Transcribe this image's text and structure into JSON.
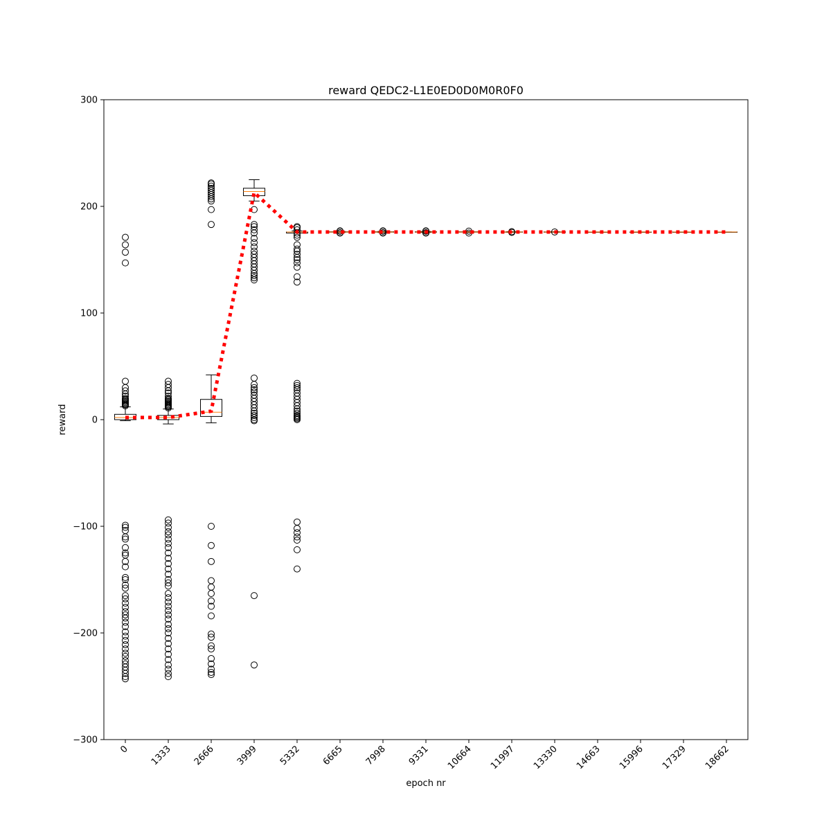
{
  "chart_data": {
    "type": "box",
    "title": "reward QEDC2-L1E0ED0D0M0R0F0",
    "xlabel": "epoch nr",
    "ylabel": "reward",
    "ylim": [
      -300,
      300
    ],
    "yticks": [
      -300,
      -200,
      -100,
      0,
      100,
      200,
      300
    ],
    "ytick_labels": [
      "−300",
      "−200",
      "−100",
      "0",
      "100",
      "200",
      "300"
    ],
    "categories": [
      "0",
      "1333",
      "2666",
      "3999",
      "5332",
      "6665",
      "7998",
      "9331",
      "10664",
      "11997",
      "13330",
      "14663",
      "15996",
      "17329",
      "18662"
    ],
    "grid": false,
    "legend": "none",
    "colors": {
      "box_edge": "#000000",
      "median": "#ff7f0e",
      "mean_line": "#ff0000",
      "flier": "#000000"
    },
    "boxes": [
      {
        "category": "0",
        "whisker_low": -1,
        "q1": 0,
        "median": 2,
        "q3": 5,
        "whisker_high": 12,
        "fliers": [
          13,
          14,
          15,
          16,
          17,
          18,
          19,
          20,
          22,
          24,
          27,
          30,
          36,
          147,
          157,
          164,
          171,
          -99,
          -101,
          -104,
          -110,
          -112,
          -120,
          -125,
          -127,
          -133,
          -138,
          -148,
          -150,
          -155,
          -158,
          -165,
          -168,
          -172,
          -176,
          -180,
          -183,
          -186,
          -190,
          -194,
          -199,
          -203,
          -207,
          -211,
          -215,
          -219,
          -222,
          -226,
          -229,
          -232,
          -235,
          -238,
          -241,
          -243
        ]
      },
      {
        "category": "1333",
        "whisker_low": -4,
        "q1": 0,
        "median": 2,
        "q3": 4,
        "whisker_high": 10,
        "fliers": [
          11,
          12,
          13,
          14,
          15,
          16,
          17,
          18,
          19,
          20,
          22,
          25,
          27,
          30,
          33,
          36,
          -94,
          -97,
          -101,
          -105,
          -108,
          -112,
          -116,
          -120,
          -125,
          -130,
          -135,
          -140,
          -145,
          -150,
          -153,
          -156,
          -163,
          -167,
          -171,
          -175,
          -179,
          -183,
          -187,
          -192,
          -196,
          -200,
          -205,
          -210,
          -215,
          -220,
          -225,
          -230,
          -234,
          -238,
          -241
        ]
      },
      {
        "category": "2666",
        "whisker_low": -3,
        "q1": 3,
        "median": 7,
        "q3": 19,
        "whisker_high": 42,
        "fliers": [
          183,
          197,
          205,
          207,
          209,
          211,
          213,
          215,
          217,
          219,
          221,
          222,
          -100,
          -118,
          -133,
          -151,
          -157,
          -163,
          -170,
          -175,
          -184,
          -201,
          -204,
          -212,
          -215,
          -224,
          -229,
          -234,
          -237,
          -239
        ]
      },
      {
        "category": "3999",
        "whisker_low": 205,
        "q1": 210,
        "median": 214,
        "q3": 217,
        "whisker_high": 225,
        "fliers": [
          131,
          133,
          135,
          137,
          140,
          143,
          146,
          149,
          152,
          155,
          158,
          162,
          166,
          170,
          175,
          178,
          181,
          183,
          197,
          -1,
          0,
          2,
          4,
          6,
          8,
          11,
          14,
          17,
          20,
          23,
          26,
          28,
          30,
          33,
          39,
          -165,
          -230
        ]
      },
      {
        "category": "5332",
        "whisker_low": 175,
        "q1": 175,
        "median": 176,
        "q3": 176,
        "whisker_high": 177,
        "fliers": [
          129,
          134,
          143,
          147,
          150,
          152,
          155,
          158,
          160,
          164,
          171,
          173,
          175,
          178,
          180,
          181,
          0,
          1,
          2,
          3,
          4,
          6,
          8,
          10,
          13,
          16,
          19,
          22,
          25,
          28,
          30,
          32,
          34,
          -96,
          -102,
          -106,
          -110,
          -113,
          -122,
          -140
        ]
      },
      {
        "category": "6665",
        "whisker_low": 175.5,
        "q1": 175.8,
        "median": 176,
        "q3": 176.2,
        "whisker_high": 176.5,
        "fliers": [
          175,
          175.3,
          176.7,
          177
        ]
      },
      {
        "category": "7998",
        "whisker_low": 175.5,
        "q1": 175.8,
        "median": 176,
        "q3": 176.2,
        "whisker_high": 176.5,
        "fliers": [
          175,
          175.3,
          176.7,
          177
        ]
      },
      {
        "category": "9331",
        "whisker_low": 175.5,
        "q1": 175.8,
        "median": 176,
        "q3": 176.2,
        "whisker_high": 176.5,
        "fliers": [
          175,
          175.3,
          176.7,
          177
        ]
      },
      {
        "category": "10664",
        "whisker_low": 175.5,
        "q1": 175.8,
        "median": 176,
        "q3": 176.2,
        "whisker_high": 176.5,
        "fliers": [
          175,
          176.8
        ]
      },
      {
        "category": "11997",
        "whisker_low": 175.7,
        "q1": 175.9,
        "median": 176,
        "q3": 176.1,
        "whisker_high": 176.3,
        "fliers": [
          175.6,
          176.3
        ]
      },
      {
        "category": "13330",
        "whisker_low": 175.8,
        "q1": 175.9,
        "median": 176,
        "q3": 176.1,
        "whisker_high": 176.2,
        "fliers": [
          176
        ]
      },
      {
        "category": "14663",
        "whisker_low": 176,
        "q1": 176,
        "median": 176,
        "q3": 176,
        "whisker_high": 176,
        "fliers": []
      },
      {
        "category": "15996",
        "whisker_low": 176,
        "q1": 176,
        "median": 176,
        "q3": 176,
        "whisker_high": 176,
        "fliers": []
      },
      {
        "category": "17329",
        "whisker_low": 176,
        "q1": 176,
        "median": 176,
        "q3": 176,
        "whisker_high": 176,
        "fliers": []
      },
      {
        "category": "18662",
        "whisker_low": 176,
        "q1": 176,
        "median": 176,
        "q3": 176,
        "whisker_high": 176,
        "fliers": []
      }
    ],
    "series": [
      {
        "type": "line",
        "style": "dotted",
        "values": [
          2,
          2,
          8,
          213,
          176,
          176,
          176,
          176,
          176,
          176,
          176,
          176,
          176,
          176,
          176
        ]
      }
    ]
  }
}
